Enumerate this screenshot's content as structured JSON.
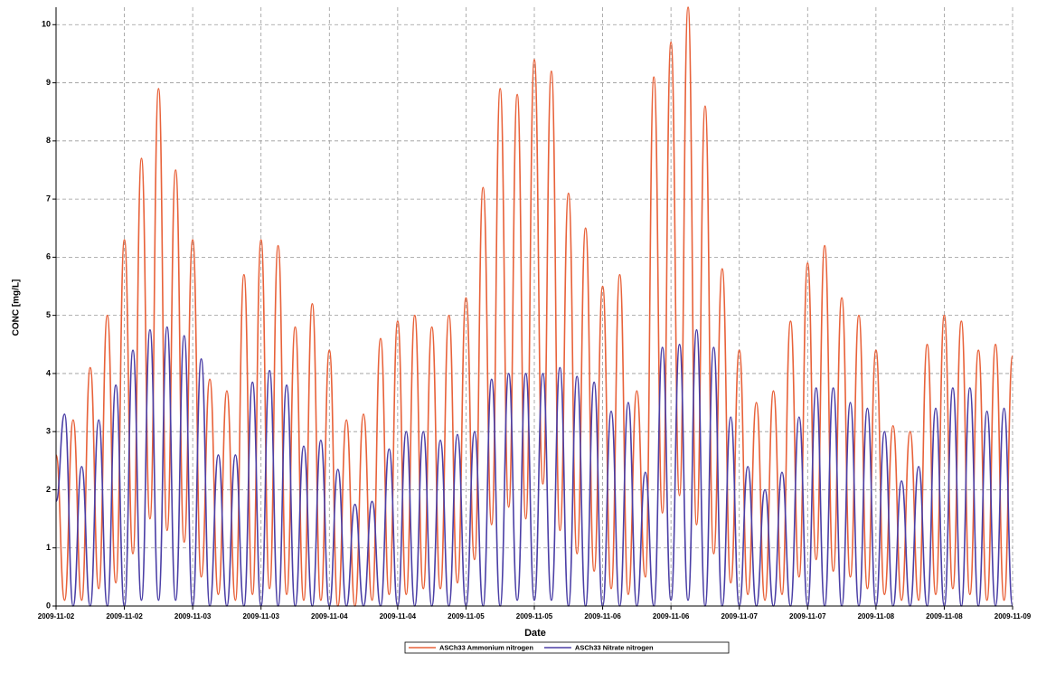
{
  "chart_data": {
    "type": "line",
    "xlabel": "Date",
    "ylabel": "CONC [mg/L]",
    "categories": [
      "2009-11-02",
      null,
      null,
      null,
      null,
      null,
      null,
      null,
      "2009-11-02",
      null,
      null,
      null,
      null,
      null,
      null,
      null,
      "2009-11-03",
      null,
      null,
      null,
      null,
      null,
      null,
      null,
      "2009-11-03",
      null,
      null,
      null,
      null,
      null,
      null,
      null,
      "2009-11-04",
      null,
      null,
      null,
      null,
      null,
      null,
      null,
      "2009-11-04",
      null,
      null,
      null,
      null,
      null,
      null,
      null,
      "2009-11-05",
      null,
      null,
      null,
      null,
      null,
      null,
      null,
      "2009-11-05",
      null,
      null,
      null,
      null,
      null,
      null,
      null,
      "2009-11-06",
      null,
      null,
      null,
      null,
      null,
      null,
      null,
      "2009-11-06",
      null,
      null,
      null,
      null,
      null,
      null,
      null,
      "2009-11-07",
      null,
      null,
      null,
      null,
      null,
      null,
      null,
      "2009-11-07",
      null,
      null,
      null,
      null,
      null,
      null,
      null,
      "2009-11-08",
      null,
      null,
      null,
      null,
      null,
      null,
      null,
      "2009-11-08",
      null,
      null,
      null,
      null,
      null,
      null,
      null,
      "2009-11-09"
    ],
    "series": [
      {
        "name": "ASCh33 Ammonium nitrogen",
        "color": "#e8623a",
        "values": [
          2.6,
          0.1,
          3.2,
          0.1,
          4.1,
          0.3,
          5.0,
          0.4,
          6.3,
          0.9,
          7.7,
          1.5,
          8.9,
          1.3,
          7.5,
          1.1,
          6.3,
          0.5,
          3.9,
          0.2,
          3.7,
          0.1,
          5.7,
          0.2,
          6.3,
          0.3,
          6.2,
          0.2,
          4.8,
          0.1,
          5.2,
          0.1,
          4.4,
          0.0,
          3.2,
          0.0,
          3.3,
          0.1,
          4.6,
          0.2,
          4.9,
          0.2,
          5.0,
          0.3,
          4.8,
          0.3,
          5.0,
          0.4,
          5.3,
          0.8,
          7.2,
          1.4,
          8.9,
          1.7,
          8.8,
          1.5,
          9.4,
          2.1,
          9.2,
          1.3,
          7.1,
          0.9,
          6.5,
          0.6,
          5.5,
          0.3,
          5.7,
          0.2,
          3.7,
          0.5,
          9.1,
          1.6,
          9.7,
          1.9,
          10.3,
          1.4,
          8.6,
          0.9,
          5.8,
          0.4,
          4.4,
          0.2,
          3.5,
          0.1,
          3.7,
          0.2,
          4.9,
          0.5,
          5.9,
          0.8,
          6.2,
          0.6,
          5.3,
          0.5,
          5.0,
          0.3,
          4.4,
          0.2,
          3.1,
          0.1,
          3.0,
          0.1,
          4.5,
          0.2,
          5.0,
          0.3,
          4.9,
          0.2,
          4.4,
          0.1,
          4.5,
          0.1,
          4.3
        ]
      },
      {
        "name": "ASCh33 Nitrate nitrogen",
        "color": "#4b3fa6",
        "values": [
          1.8,
          3.3,
          0.0,
          2.4,
          0.0,
          3.2,
          0.0,
          3.8,
          0.0,
          4.4,
          0.1,
          4.75,
          0.1,
          4.8,
          0.1,
          4.65,
          0.0,
          4.25,
          0.0,
          2.6,
          0.0,
          2.6,
          0.0,
          3.85,
          0.0,
          4.05,
          0.0,
          3.8,
          0.0,
          2.75,
          0.0,
          2.85,
          0.0,
          2.35,
          0.0,
          1.75,
          0.0,
          1.8,
          0.0,
          2.7,
          0.0,
          3.0,
          0.0,
          3.0,
          0.0,
          2.85,
          0.0,
          2.95,
          0.0,
          3.0,
          0.0,
          3.9,
          0.0,
          4.0,
          0.1,
          4.0,
          0.1,
          4.0,
          0.1,
          4.1,
          0.0,
          3.95,
          0.0,
          3.85,
          0.0,
          3.35,
          0.0,
          3.5,
          0.0,
          2.3,
          0.0,
          4.45,
          0.1,
          4.5,
          0.1,
          4.75,
          0.0,
          4.45,
          0.0,
          3.25,
          0.0,
          2.4,
          0.0,
          2.0,
          0.0,
          2.3,
          0.0,
          3.25,
          0.0,
          3.75,
          0.0,
          3.75,
          0.0,
          3.5,
          0.0,
          3.4,
          0.0,
          3.0,
          0.0,
          2.15,
          0.0,
          2.4,
          0.0,
          3.4,
          0.0,
          3.75,
          0.0,
          3.75,
          0.0,
          3.35,
          0.0,
          3.4,
          0.0
        ]
      }
    ],
    "ylim": [
      0,
      10.3
    ],
    "yticks": [
      0,
      1,
      2,
      3,
      4,
      5,
      6,
      7,
      8,
      9,
      10
    ],
    "grid": true
  }
}
